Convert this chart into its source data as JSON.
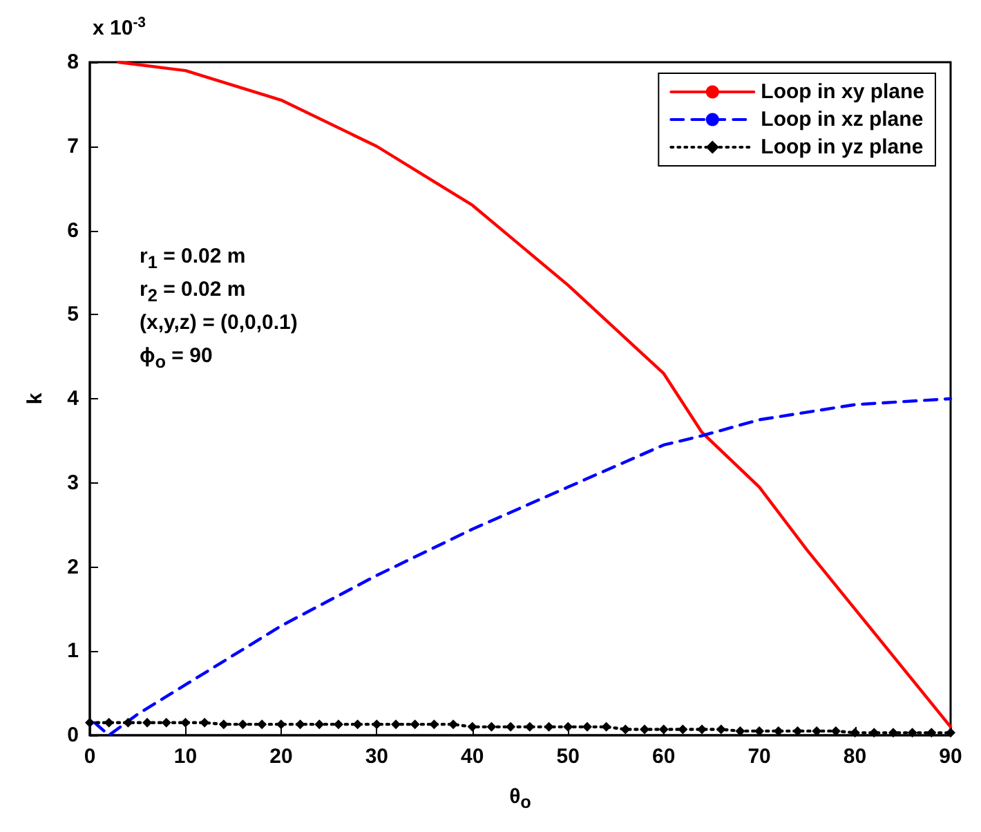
{
  "chart_data": {
    "type": "line",
    "xlabel": "θ$_{o}$",
    "ylabel": "k",
    "xlim": [
      0,
      90
    ],
    "xticks": [
      0,
      10,
      20,
      30,
      40,
      50,
      60,
      70,
      80,
      90
    ],
    "ylim": [
      0,
      8
    ],
    "yticks": [
      0,
      1,
      2,
      3,
      4,
      5,
      6,
      7,
      8
    ],
    "grid": false,
    "legend": "top right",
    "annotations": [
      "x 10$^{-3}$",
      "r$_{1}$ = 0.02 m",
      "r$_{2}$ = 0.02 m",
      "(x,y,z) = (0,0,0.1)",
      "ϕ$_{o}$ = 90"
    ],
    "series": [
      {
        "name": "Loop in xy plane",
        "color": "#ff0000",
        "line_style": "solid",
        "marker": "none",
        "x": [
          3,
          10,
          20,
          30,
          40,
          50,
          60,
          64,
          70,
          75,
          80,
          85,
          90
        ],
        "values": [
          8.0,
          7.9,
          7.55,
          7.0,
          6.3,
          5.35,
          4.3,
          3.6,
          2.95,
          2.2,
          1.5,
          0.8,
          0.1
        ]
      },
      {
        "name": "Loop in xz plane",
        "color": "#0000ff",
        "line_style": "dashed",
        "marker": "none",
        "x": [
          0.5,
          2,
          5,
          10,
          20,
          30,
          40,
          50,
          60,
          64,
          70,
          80,
          90
        ],
        "values": [
          0.15,
          0,
          0.25,
          0.6,
          1.3,
          1.9,
          2.45,
          2.95,
          3.45,
          3.56,
          3.75,
          3.93,
          4.0
        ]
      },
      {
        "name": "Loop in yz plane",
        "color": "#000000",
        "line_style": "dotted",
        "marker": "diamond",
        "x": [
          0,
          2,
          4,
          6,
          8,
          10,
          12,
          14,
          16,
          18,
          20,
          22,
          24,
          26,
          28,
          30,
          32,
          34,
          36,
          38,
          40,
          42,
          44,
          46,
          48,
          50,
          52,
          54,
          56,
          58,
          60,
          62,
          64,
          66,
          68,
          70,
          72,
          74,
          76,
          78,
          80,
          82,
          84,
          86,
          88,
          90
        ],
        "values": [
          0.15,
          0.15,
          0.15,
          0.15,
          0.15,
          0.15,
          0.15,
          0.13,
          0.13,
          0.13,
          0.13,
          0.13,
          0.13,
          0.13,
          0.13,
          0.13,
          0.13,
          0.13,
          0.13,
          0.13,
          0.1,
          0.1,
          0.1,
          0.1,
          0.1,
          0.1,
          0.1,
          0.1,
          0.07,
          0.07,
          0.07,
          0.07,
          0.07,
          0.07,
          0.05,
          0.05,
          0.05,
          0.05,
          0.05,
          0.05,
          0.03,
          0.03,
          0.03,
          0.03,
          0.03,
          0.03
        ]
      }
    ]
  }
}
